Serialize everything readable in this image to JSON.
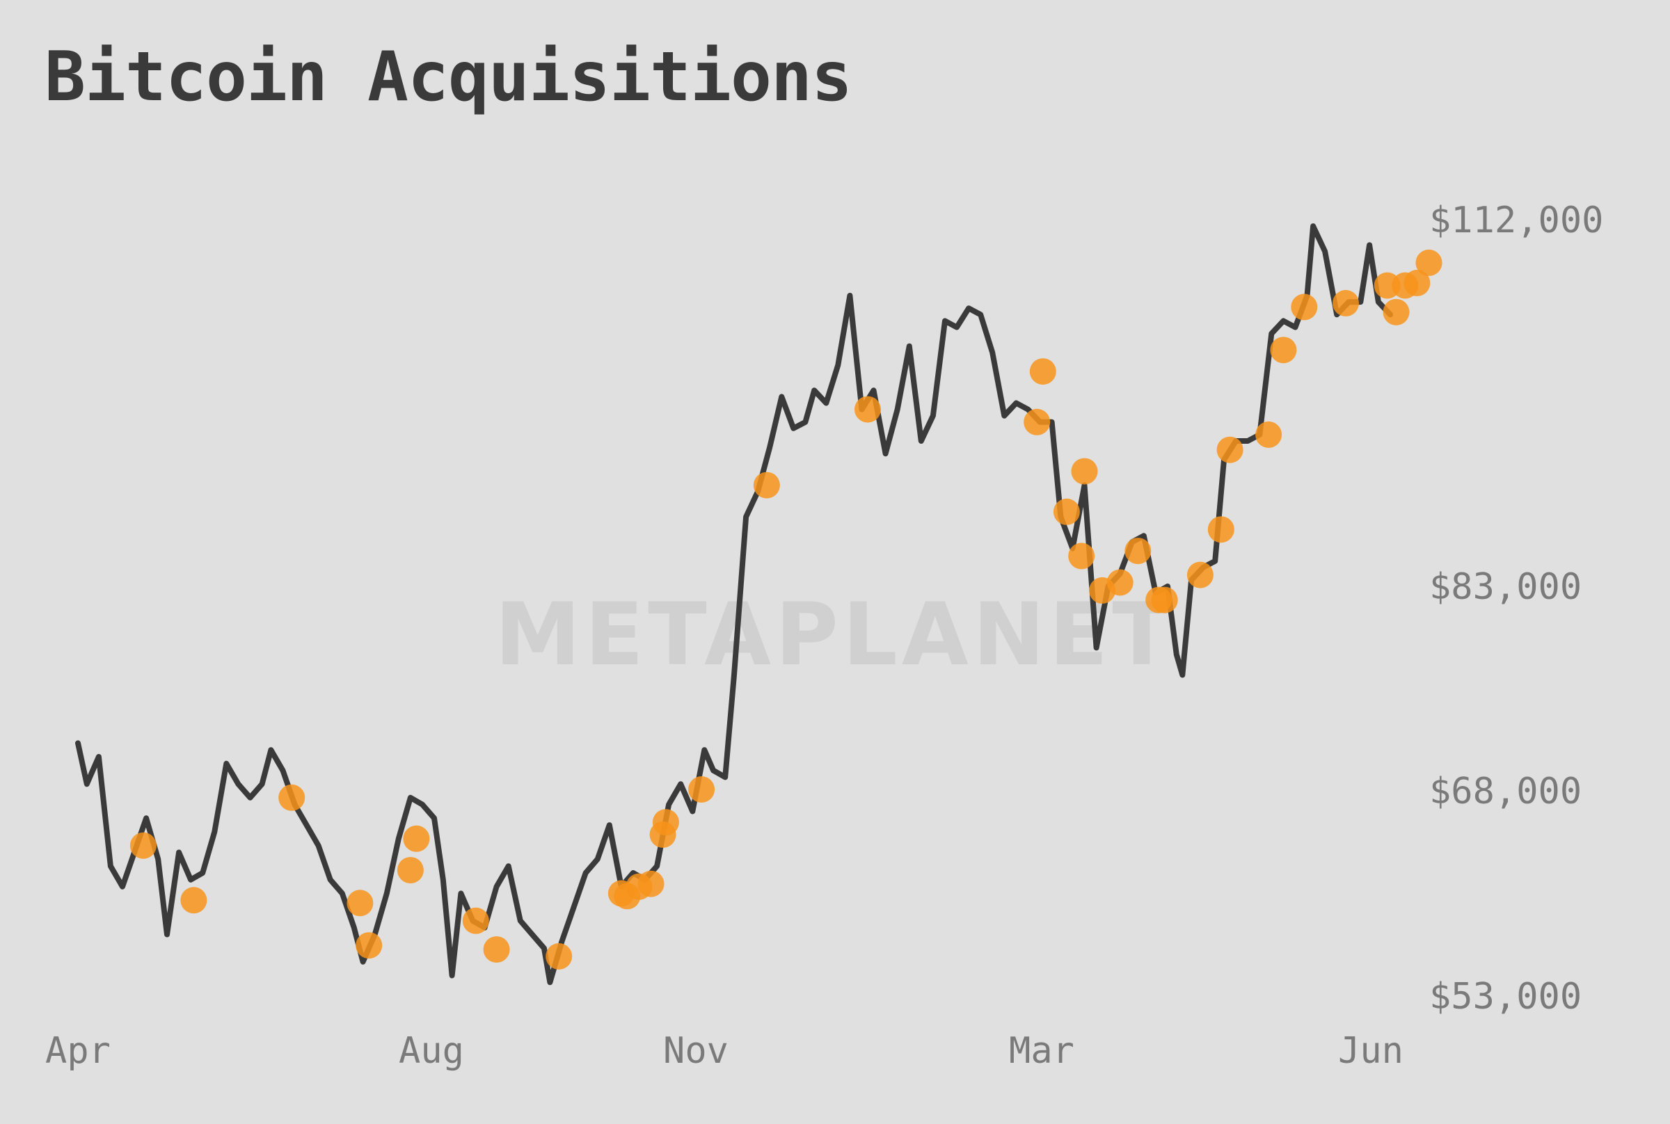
{
  "title": "Bitcoin Acquisitions",
  "watermark": "METAPLANET",
  "colors": {
    "background": "#e0e0e0",
    "line": "#3a3a3a",
    "marker": "#f7931a",
    "tick_label": "#7a7a7a",
    "watermark": "#d0d0d0"
  },
  "chart_data": {
    "type": "line",
    "title": "Bitcoin Acquisitions",
    "x_ticks": [
      "Apr",
      "Aug",
      "Nov",
      "Mar",
      "Jun"
    ],
    "y_ticks": [
      "$112,000",
      "$83,000",
      "$68,000",
      "$53,000"
    ],
    "y_axis_side": "right",
    "grid": false,
    "legend": "none",
    "x_range": [
      "2024-04-01",
      "2025-06-17"
    ],
    "price_series": {
      "name": "",
      "points": [
        [
          "2024-04-01",
          71500
        ],
        [
          "2024-04-04",
          68500
        ],
        [
          "2024-04-08",
          70500
        ],
        [
          "2024-04-12",
          62500
        ],
        [
          "2024-04-16",
          61000
        ],
        [
          "2024-04-20",
          63500
        ],
        [
          "2024-04-24",
          66000
        ],
        [
          "2024-04-28",
          63000
        ],
        [
          "2024-05-01",
          57500
        ],
        [
          "2024-05-05",
          63500
        ],
        [
          "2024-05-09",
          61500
        ],
        [
          "2024-05-13",
          62000
        ],
        [
          "2024-05-17",
          65000
        ],
        [
          "2024-05-21",
          70000
        ],
        [
          "2024-05-25",
          68500
        ],
        [
          "2024-05-29",
          67500
        ],
        [
          "2024-06-02",
          68500
        ],
        [
          "2024-06-05",
          71000
        ],
        [
          "2024-06-09",
          69500
        ],
        [
          "2024-06-13",
          67000
        ],
        [
          "2024-06-17",
          65500
        ],
        [
          "2024-06-21",
          64000
        ],
        [
          "2024-06-25",
          61500
        ],
        [
          "2024-06-29",
          60500
        ],
        [
          "2024-07-03",
          58000
        ],
        [
          "2024-07-06",
          55500
        ],
        [
          "2024-07-10",
          57500
        ],
        [
          "2024-07-14",
          60500
        ],
        [
          "2024-07-18",
          64500
        ],
        [
          "2024-07-22",
          67500
        ],
        [
          "2024-07-26",
          67000
        ],
        [
          "2024-07-30",
          66000
        ],
        [
          "2024-08-02",
          61500
        ],
        [
          "2024-08-05",
          54500
        ],
        [
          "2024-08-08",
          60500
        ],
        [
          "2024-08-12",
          58500
        ],
        [
          "2024-08-16",
          58000
        ],
        [
          "2024-08-20",
          61000
        ],
        [
          "2024-08-24",
          62500
        ],
        [
          "2024-08-28",
          58500
        ],
        [
          "2024-09-01",
          57500
        ],
        [
          "2024-09-05",
          56500
        ],
        [
          "2024-09-07",
          54000
        ],
        [
          "2024-09-11",
          57000
        ],
        [
          "2024-09-15",
          59500
        ],
        [
          "2024-09-19",
          62000
        ],
        [
          "2024-09-23",
          63000
        ],
        [
          "2024-09-27",
          65500
        ],
        [
          "2024-10-01",
          61000
        ],
        [
          "2024-10-05",
          62000
        ],
        [
          "2024-10-09",
          61500
        ],
        [
          "2024-10-13",
          62500
        ],
        [
          "2024-10-17",
          67000
        ],
        [
          "2024-10-21",
          68500
        ],
        [
          "2024-10-25",
          66500
        ],
        [
          "2024-10-29",
          71000
        ],
        [
          "2024-11-01",
          69500
        ],
        [
          "2024-11-05",
          69000
        ],
        [
          "2024-11-08",
          76500
        ],
        [
          "2024-11-12",
          88500
        ],
        [
          "2024-11-16",
          90500
        ],
        [
          "2024-11-20",
          94000
        ],
        [
          "2024-11-24",
          98000
        ],
        [
          "2024-11-28",
          95500
        ],
        [
          "2024-12-02",
          96000
        ],
        [
          "2024-12-05",
          98500
        ],
        [
          "2024-12-09",
          97500
        ],
        [
          "2024-12-13",
          100500
        ],
        [
          "2024-12-17",
          106000
        ],
        [
          "2024-12-21",
          97000
        ],
        [
          "2024-12-25",
          98500
        ],
        [
          "2024-12-29",
          93500
        ],
        [
          "2025-01-02",
          97000
        ],
        [
          "2025-01-06",
          102000
        ],
        [
          "2025-01-10",
          94500
        ],
        [
          "2025-01-14",
          96500
        ],
        [
          "2025-01-18",
          104000
        ],
        [
          "2025-01-22",
          103500
        ],
        [
          "2025-01-26",
          105000
        ],
        [
          "2025-01-30",
          104500
        ],
        [
          "2025-02-03",
          101500
        ],
        [
          "2025-02-07",
          96500
        ],
        [
          "2025-02-11",
          97500
        ],
        [
          "2025-02-15",
          97000
        ],
        [
          "2025-02-19",
          96000
        ],
        [
          "2025-02-23",
          96000
        ],
        [
          "2025-02-26",
          88500
        ],
        [
          "2025-03-02",
          86000
        ],
        [
          "2025-03-06",
          91000
        ],
        [
          "2025-03-10",
          78500
        ],
        [
          "2025-03-14",
          83000
        ],
        [
          "2025-03-18",
          84000
        ],
        [
          "2025-03-22",
          86500
        ],
        [
          "2025-03-26",
          87000
        ],
        [
          "2025-03-30",
          82500
        ],
        [
          "2025-04-03",
          83000
        ],
        [
          "2025-04-06",
          78000
        ],
        [
          "2025-04-08",
          76500
        ],
        [
          "2025-04-11",
          83500
        ],
        [
          "2025-04-15",
          84500
        ],
        [
          "2025-04-19",
          85000
        ],
        [
          "2025-04-22",
          93000
        ],
        [
          "2025-04-26",
          94500
        ],
        [
          "2025-04-30",
          94500
        ],
        [
          "2025-05-04",
          95000
        ],
        [
          "2025-05-08",
          103000
        ],
        [
          "2025-05-12",
          104000
        ],
        [
          "2025-05-16",
          103500
        ],
        [
          "2025-05-20",
          106000
        ],
        [
          "2025-05-22",
          111500
        ],
        [
          "2025-05-26",
          109500
        ],
        [
          "2025-05-30",
          104500
        ],
        [
          "2025-06-03",
          105500
        ],
        [
          "2025-06-07",
          105500
        ],
        [
          "2025-06-10",
          110000
        ],
        [
          "2025-06-13",
          105500
        ],
        [
          "2025-06-17",
          104500
        ]
      ]
    },
    "acquisitions": {
      "name": "",
      "points": [
        [
          "2024-04-23",
          64000
        ],
        [
          "2024-05-10",
          60000
        ],
        [
          "2024-06-12",
          67500
        ],
        [
          "2024-07-05",
          59800
        ],
        [
          "2024-07-08",
          56700
        ],
        [
          "2024-07-24",
          64500
        ],
        [
          "2024-07-22",
          62200
        ],
        [
          "2024-08-13",
          58500
        ],
        [
          "2024-08-20",
          56400
        ],
        [
          "2024-09-10",
          55900
        ],
        [
          "2024-10-01",
          60500
        ],
        [
          "2024-10-03",
          60300
        ],
        [
          "2024-10-07",
          61000
        ],
        [
          "2024-10-11",
          61200
        ],
        [
          "2024-10-15",
          64800
        ],
        [
          "2024-10-16",
          65700
        ],
        [
          "2024-10-28",
          68100
        ],
        [
          "2024-11-19",
          91000
        ],
        [
          "2024-12-23",
          97000
        ],
        [
          "2025-02-18",
          96000
        ],
        [
          "2025-02-20",
          100000
        ],
        [
          "2025-02-28",
          88900
        ],
        [
          "2025-03-05",
          85400
        ],
        [
          "2025-03-06",
          92100
        ],
        [
          "2025-03-12",
          82700
        ],
        [
          "2025-03-18",
          83300
        ],
        [
          "2025-03-24",
          85800
        ],
        [
          "2025-03-31",
          82000
        ],
        [
          "2025-04-02",
          82000
        ],
        [
          "2025-04-14",
          83900
        ],
        [
          "2025-04-21",
          87500
        ],
        [
          "2025-04-24",
          93800
        ],
        [
          "2025-05-07",
          95000
        ],
        [
          "2025-05-12",
          101700
        ],
        [
          "2025-05-19",
          105100
        ],
        [
          "2025-06-02",
          105400
        ],
        [
          "2025-06-16",
          106800
        ],
        [
          "2025-06-19",
          104700
        ],
        [
          "2025-06-22",
          106800
        ],
        [
          "2025-06-26",
          107000
        ],
        [
          "2025-06-30",
          108600
        ]
      ]
    }
  }
}
